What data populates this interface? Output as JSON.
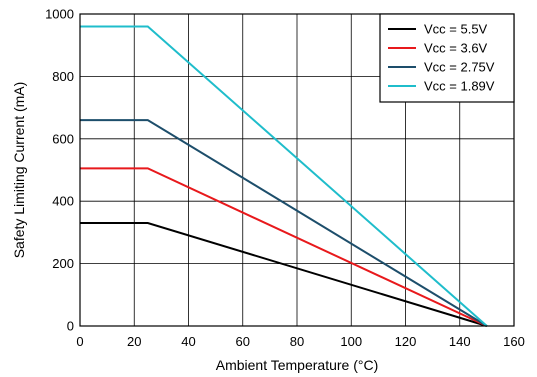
{
  "chart_data": {
    "type": "line",
    "title": "",
    "xlabel": "Ambient Temperature (°C)",
    "ylabel": "Safety Limiting Current (mA)",
    "xlim": [
      0,
      160
    ],
    "ylim": [
      0,
      1000
    ],
    "x_ticks": [
      "0",
      "20",
      "40",
      "60",
      "80",
      "100",
      "120",
      "140",
      "160"
    ],
    "y_ticks": [
      "0",
      "200",
      "400",
      "600",
      "800",
      "1000"
    ],
    "grid": true,
    "legend_position": "top-right",
    "series": [
      {
        "name": "Vcc = 5.5V",
        "color": "#000000",
        "x": [
          0,
          25,
          150
        ],
        "y": [
          330,
          330,
          0
        ]
      },
      {
        "name": "Vcc = 3.6V",
        "color": "#e8191c",
        "x": [
          0,
          25,
          150
        ],
        "y": [
          505,
          505,
          0
        ]
      },
      {
        "name": "Vcc = 2.75V",
        "color": "#1d4e6b",
        "x": [
          0,
          25,
          150
        ],
        "y": [
          660,
          660,
          0
        ]
      },
      {
        "name": "Vcc = 1.89V",
        "color": "#1fbdcb",
        "x": [
          0,
          25,
          150
        ],
        "y": [
          960,
          960,
          0
        ]
      }
    ]
  }
}
